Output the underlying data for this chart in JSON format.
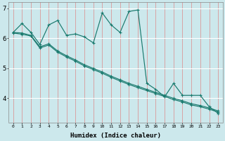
{
  "xlabel": "Humidex (Indice chaleur)",
  "bg_color": "#cce8ec",
  "line_color": "#1a7a6e",
  "grid_color_v": "#ff9999",
  "grid_color_h": "#ffffff",
  "x": [
    0,
    1,
    2,
    3,
    4,
    5,
    6,
    7,
    8,
    9,
    10,
    11,
    12,
    13,
    14,
    15,
    16,
    17,
    18,
    19,
    20,
    21,
    22,
    23
  ],
  "line1": [
    6.2,
    6.5,
    6.2,
    5.8,
    6.45,
    6.6,
    6.1,
    6.15,
    6.05,
    5.85,
    6.85,
    6.45,
    6.2,
    6.9,
    6.95,
    4.5,
    4.3,
    4.05,
    4.5,
    4.1,
    4.1,
    4.1,
    3.72,
    3.5
  ],
  "line2": [
    6.2,
    6.18,
    6.1,
    5.72,
    5.82,
    5.58,
    5.42,
    5.28,
    5.12,
    5.0,
    4.88,
    4.74,
    4.62,
    4.5,
    4.4,
    4.3,
    4.2,
    4.1,
    4.0,
    3.92,
    3.82,
    3.76,
    3.68,
    3.58
  ],
  "line3": [
    6.18,
    6.14,
    6.08,
    5.68,
    5.78,
    5.54,
    5.38,
    5.24,
    5.08,
    4.96,
    4.84,
    4.7,
    4.58,
    4.46,
    4.36,
    4.26,
    4.16,
    4.06,
    3.96,
    3.88,
    3.78,
    3.72,
    3.64,
    3.54
  ],
  "ylim": [
    3.2,
    7.2
  ],
  "yticks": [
    4,
    5,
    6,
    7
  ],
  "xlim": [
    -0.5,
    23.5
  ],
  "figwidth": 3.2,
  "figheight": 2.0,
  "dpi": 100
}
